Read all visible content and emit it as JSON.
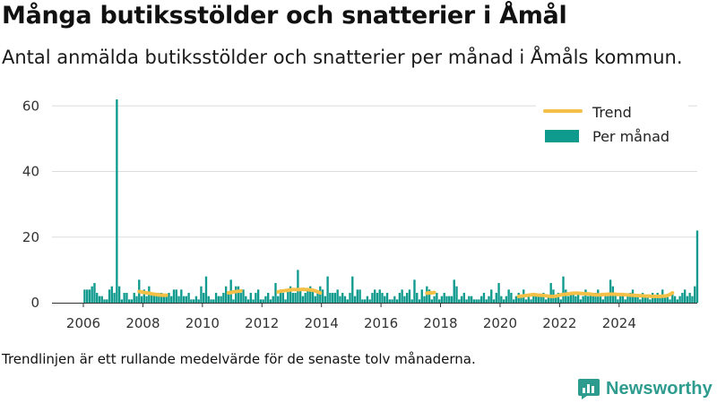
{
  "title": "Många butiksstölder och snatterier i Åmål",
  "subtitle": "Antal anmälda butiksstölder och snatterier per månad i Åmåls kommun.",
  "footnote": "Trendlinjen är ett rullande medelvärde för de senaste tolv månaderna.",
  "brand": "Newsworthy",
  "colors": {
    "bar": "#0f9a8e",
    "trend": "#f5c048",
    "grid": "#dddddd",
    "brand": "#2d9c8e"
  },
  "chart_data": {
    "type": "bar",
    "start_month": "2006-01",
    "ylim": [
      0,
      65
    ],
    "yticks": [
      0,
      20,
      40,
      60
    ],
    "xticks": [
      "2006",
      "2008",
      "2010",
      "2012",
      "2014",
      "2016",
      "2018",
      "2020",
      "2022",
      "2024"
    ],
    "legend": {
      "placement": "top-right",
      "trend_label": "Trend",
      "bars_label": "Per månad"
    },
    "series": [
      {
        "name": "Per månad",
        "values": [
          4,
          4,
          4,
          5,
          6,
          3,
          2,
          2,
          1,
          1,
          4,
          5,
          3,
          62,
          5,
          1,
          3,
          3,
          1,
          1,
          3,
          2,
          7,
          2,
          4,
          2,
          5,
          3,
          3,
          3,
          3,
          3,
          2,
          2,
          3,
          2,
          4,
          4,
          2,
          4,
          2,
          2,
          3,
          1,
          1,
          2,
          1,
          5,
          3,
          8,
          2,
          1,
          1,
          3,
          2,
          2,
          3,
          5,
          3,
          7,
          1,
          5,
          5,
          3,
          4,
          2,
          1,
          3,
          1,
          3,
          4,
          1,
          1,
          2,
          3,
          1,
          2,
          6,
          2,
          4,
          3,
          1,
          4,
          5,
          3,
          3,
          10,
          4,
          2,
          3,
          4,
          5,
          4,
          2,
          3,
          5,
          4,
          2,
          8,
          3,
          3,
          3,
          4,
          2,
          3,
          2,
          1,
          3,
          8,
          2,
          4,
          4,
          1,
          1,
          2,
          1,
          3,
          4,
          3,
          4,
          3,
          2,
          3,
          1,
          1,
          2,
          1,
          3,
          4,
          2,
          3,
          4,
          1,
          7,
          3,
          1,
          4,
          2,
          5,
          4,
          1,
          2,
          3,
          1,
          2,
          3,
          2,
          2,
          2,
          7,
          5,
          1,
          2,
          3,
          1,
          2,
          2,
          1,
          1,
          1,
          2,
          3,
          1,
          2,
          4,
          1,
          3,
          6,
          2,
          1,
          2,
          4,
          3,
          1,
          2,
          3,
          2,
          4,
          1,
          2,
          1,
          3,
          2,
          2,
          2,
          3,
          1,
          2,
          6,
          4,
          2,
          3,
          1,
          8,
          4,
          2,
          3,
          3,
          2,
          3,
          1,
          2,
          4,
          2,
          3,
          2,
          3,
          4,
          2,
          1,
          3,
          2,
          7,
          5,
          3,
          1,
          2,
          3,
          1,
          2,
          3,
          4,
          2,
          2,
          1,
          3,
          2,
          2,
          1,
          3,
          2,
          3,
          2,
          4,
          2,
          2,
          1,
          3,
          2,
          1,
          2,
          3,
          4,
          2,
          3,
          2,
          5,
          22
        ]
      },
      {
        "name": "Trend",
        "values": [
          null,
          null,
          null,
          null,
          null,
          null,
          null,
          null,
          null,
          null,
          null,
          null,
          null,
          null,
          null,
          null,
          null,
          null,
          null,
          null,
          null,
          null,
          3.4,
          3.3,
          3.1,
          3.0,
          2.9,
          2.7,
          2.6,
          2.5,
          2.4,
          2.3,
          2.3,
          2.3,
          null,
          null,
          null,
          null,
          null,
          null,
          null,
          null,
          null,
          null,
          null,
          null,
          null,
          null,
          null,
          null,
          null,
          null,
          null,
          null,
          null,
          null,
          null,
          null,
          3.0,
          3.1,
          3.3,
          3.4,
          3.5,
          3.6,
          null,
          null,
          null,
          null,
          null,
          null,
          null,
          null,
          null,
          null,
          null,
          null,
          null,
          null,
          3.3,
          3.5,
          3.6,
          3.7,
          3.8,
          3.9,
          4.0,
          4.0,
          4.0,
          4.0,
          4.1,
          4.0,
          4.0,
          3.9,
          3.8,
          3.6,
          3.3,
          3.0,
          null,
          null,
          null,
          null,
          null,
          null,
          null,
          null,
          null,
          null,
          null,
          null,
          null,
          null,
          null,
          null,
          null,
          null,
          null,
          null,
          null,
          null,
          null,
          null,
          null,
          null,
          null,
          null,
          null,
          null,
          null,
          null,
          null,
          null,
          null,
          null,
          null,
          null,
          null,
          null,
          null,
          null,
          2.9,
          3.0,
          3.0,
          3.1,
          null,
          null,
          null,
          null,
          null,
          null,
          null,
          null,
          null,
          null,
          null,
          null,
          null,
          null,
          null,
          null,
          null,
          null,
          null,
          null,
          null,
          null,
          null,
          null,
          null,
          null,
          null,
          null,
          null,
          null,
          null,
          null,
          null,
          1.9,
          2.0,
          2.1,
          2.2,
          2.3,
          2.4,
          2.5,
          2.4,
          2.3,
          2.3,
          2.2,
          2.1,
          2.0,
          1.9,
          1.9,
          2.0,
          2.2,
          2.4,
          2.5,
          2.6,
          2.7,
          2.8,
          2.9,
          2.9,
          2.9,
          2.8,
          2.8,
          2.7,
          2.7,
          2.6,
          2.5,
          2.4,
          2.4,
          2.4,
          2.5,
          2.5,
          2.6,
          2.6,
          2.6,
          2.6,
          2.5,
          2.5,
          2.5,
          2.4,
          2.4,
          2.3,
          2.3,
          2.2,
          2.2,
          2.1,
          2.1,
          2.0,
          2.0,
          2.0,
          1.9,
          1.9,
          1.9,
          1.9,
          2.0,
          2.0,
          2.2,
          2.5,
          3.0
        ]
      }
    ]
  }
}
